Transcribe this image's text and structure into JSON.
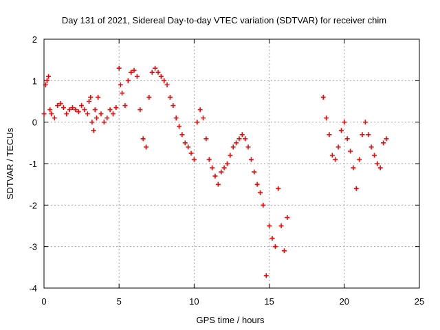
{
  "chart_data": {
    "type": "scatter",
    "title": "Day 131 of 2021, Sidereal Day-to-day VTEC variation (SDTVAR) for receiver chim",
    "xlabel": "GPS time / hours",
    "ylabel": "SDTVAR / TECUs",
    "xlim": [
      0,
      25
    ],
    "ylim": [
      -4,
      2
    ],
    "xticks": [
      0,
      5,
      10,
      15,
      20,
      25
    ],
    "yticks": [
      2,
      1,
      0,
      -1,
      -2,
      -3,
      -4
    ],
    "grid": true,
    "marker": "+",
    "series": [
      {
        "name": "SDTVAR",
        "color": "#ff0000",
        "x": [
          0.0,
          0.1,
          0.2,
          0.3,
          0.4,
          0.5,
          0.7,
          0.9,
          1.1,
          1.3,
          1.5,
          1.7,
          1.9,
          2.1,
          2.3,
          2.5,
          2.7,
          2.9,
          3.0,
          3.1,
          3.2,
          3.3,
          3.4,
          3.5,
          3.6,
          3.8,
          4.0,
          4.2,
          4.4,
          4.6,
          4.8,
          5.0,
          5.1,
          5.2,
          5.4,
          5.6,
          5.8,
          6.0,
          6.2,
          6.4,
          6.6,
          6.8,
          7.0,
          7.2,
          7.4,
          7.6,
          7.8,
          8.0,
          8.2,
          8.4,
          8.6,
          8.8,
          9.0,
          9.2,
          9.4,
          9.6,
          9.8,
          10.0,
          10.2,
          10.4,
          10.6,
          10.8,
          11.0,
          11.2,
          11.4,
          11.6,
          11.8,
          12.0,
          12.2,
          12.4,
          12.6,
          12.8,
          13.0,
          13.2,
          13.4,
          13.6,
          13.8,
          14.0,
          14.2,
          14.4,
          14.6,
          14.8,
          15.0,
          15.2,
          15.4,
          15.6,
          15.8,
          16.0,
          16.2,
          18.6,
          18.8,
          19.0,
          19.2,
          19.4,
          19.6,
          19.8,
          20.0,
          20.2,
          20.4,
          20.6,
          20.8,
          21.0,
          21.2,
          21.4,
          21.6,
          21.8,
          22.0,
          22.2,
          22.4,
          22.6,
          22.8
        ],
        "y": [
          0.2,
          0.9,
          1.0,
          1.1,
          0.3,
          0.2,
          0.1,
          0.4,
          0.45,
          0.35,
          0.2,
          0.3,
          0.35,
          0.3,
          0.25,
          0.4,
          0.3,
          0.2,
          0.5,
          0.6,
          0.0,
          -0.2,
          0.3,
          0.1,
          0.6,
          0.2,
          0.0,
          0.1,
          0.3,
          0.2,
          0.35,
          1.3,
          0.9,
          0.7,
          0.4,
          1.0,
          1.2,
          1.25,
          1.1,
          0.3,
          -0.4,
          -0.6,
          0.6,
          1.2,
          1.3,
          1.2,
          1.1,
          1.0,
          0.9,
          0.6,
          0.4,
          0.1,
          -0.1,
          -0.3,
          -0.5,
          -0.6,
          -0.75,
          -0.9,
          0.0,
          0.3,
          0.1,
          -0.4,
          -0.9,
          -1.1,
          -1.3,
          -1.5,
          -1.2,
          -1.1,
          -1.0,
          -0.8,
          -0.6,
          -0.5,
          -0.4,
          -0.3,
          -0.4,
          -0.6,
          -0.9,
          -1.2,
          -1.5,
          -1.7,
          -2.0,
          -3.7,
          -2.5,
          -2.8,
          -3.0,
          -1.6,
          -2.5,
          -3.1,
          -2.3,
          0.6,
          0.1,
          -0.3,
          -0.8,
          -0.9,
          -0.6,
          -0.2,
          0.0,
          -0.4,
          -0.7,
          -1.1,
          -1.6,
          -0.9,
          -0.3,
          0.0,
          -0.3,
          -0.6,
          -0.8,
          -1.0,
          -1.1,
          -0.5,
          -0.4
        ]
      }
    ]
  }
}
